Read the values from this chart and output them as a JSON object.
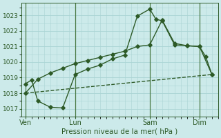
{
  "xlabel": "Pression niveau de la mer( hPa )",
  "bg_color": "#cceaea",
  "grid_color": "#aad4d4",
  "line_color": "#2d5a27",
  "vline_color": "#4a7a44",
  "ylim": [
    1016.5,
    1023.8
  ],
  "yticks": [
    1017,
    1018,
    1019,
    1020,
    1021,
    1022,
    1023
  ],
  "xtick_labels": [
    "Ven",
    "Lun",
    "Sam",
    "Dim"
  ],
  "xtick_positions": [
    0,
    4,
    10,
    14
  ],
  "xlim": [
    -0.3,
    15.5
  ],
  "line1_x": [
    0,
    0.5,
    1,
    2,
    3,
    4,
    5,
    6,
    7,
    8,
    9,
    10,
    10.5,
    11,
    12,
    13,
    14,
    14.5,
    15
  ],
  "line1_y": [
    1018.6,
    1018.85,
    1017.5,
    1017.1,
    1017.05,
    1019.2,
    1019.55,
    1019.8,
    1020.2,
    1020.45,
    1022.95,
    1023.4,
    1022.75,
    1022.65,
    1021.1,
    1021.05,
    1021.0,
    1020.35,
    1019.2
  ],
  "line2_x": [
    0,
    1,
    2,
    3,
    4,
    5,
    6,
    7,
    8,
    9,
    10,
    11,
    12,
    13,
    14,
    15
  ],
  "line2_y": [
    1018.0,
    1018.9,
    1019.3,
    1019.6,
    1019.9,
    1020.1,
    1020.3,
    1020.5,
    1020.7,
    1021.0,
    1021.1,
    1022.7,
    1021.2,
    1021.05,
    1021.0,
    1019.2
  ],
  "line3_x": [
    0,
    15
  ],
  "line3_y": [
    1018.0,
    1019.2
  ],
  "marker": "D",
  "markersize": 2.8,
  "linewidth": 1.0
}
